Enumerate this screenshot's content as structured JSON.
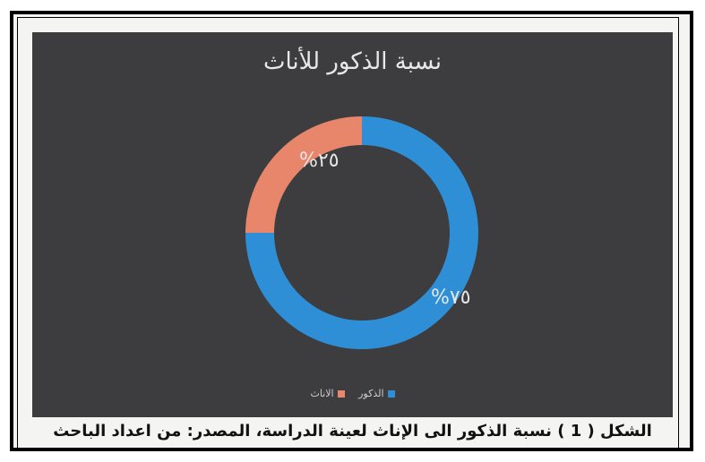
{
  "chart_data": {
    "type": "pie",
    "variant": "donut",
    "title": "نسبة الذكور للأناث",
    "categories": [
      "الذكور",
      "الاناث"
    ],
    "values": [
      75,
      25
    ],
    "labels": [
      "%٧٥",
      "%٢٥"
    ],
    "colors": [
      "#2f8fd6",
      "#e8866b"
    ],
    "legend": "bottom"
  },
  "caption": {
    "prefix": "الشكل",
    "number": "( 1 )",
    "text": "نسبة الذكور الى الإناث لعينة الدراسة، المصدر: من اعداد الباحث"
  }
}
